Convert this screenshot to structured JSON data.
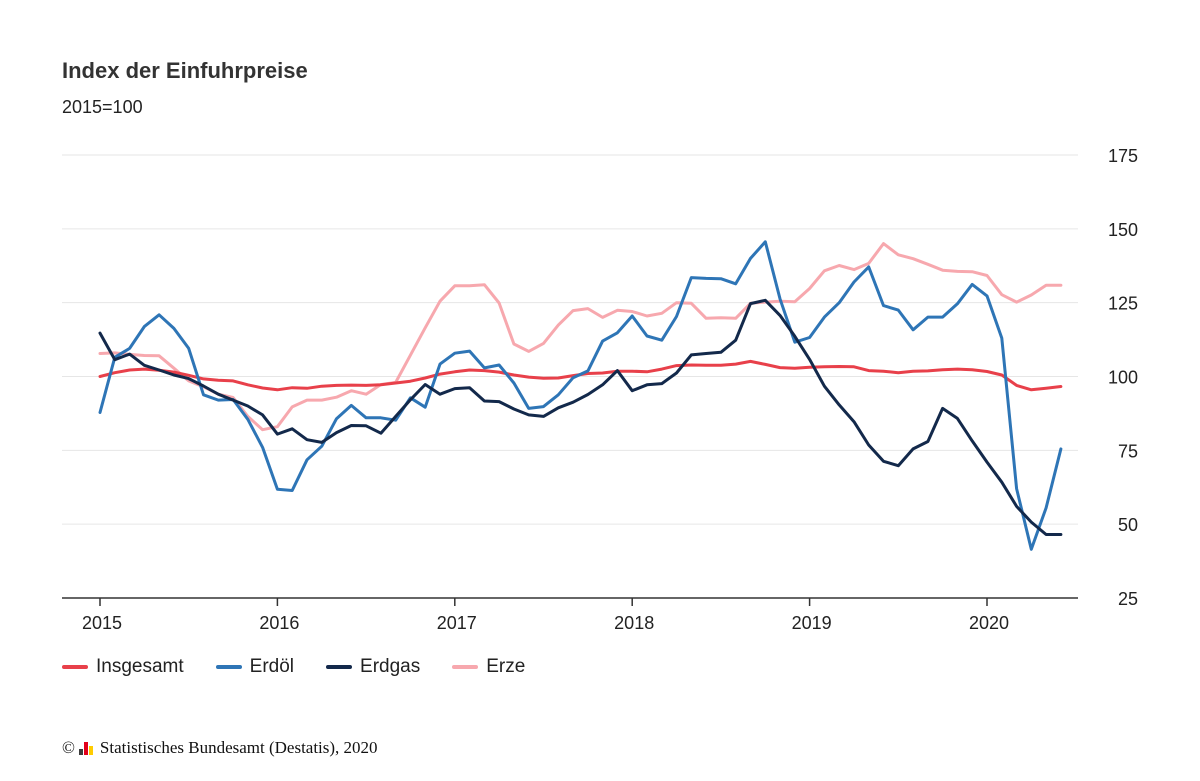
{
  "header": {
    "title": "Index der Einfuhrpreise",
    "subtitle": "2015=100"
  },
  "footer": {
    "copyright_symbol": "©",
    "source": "Statistisches Bundesamt (Destatis), 2020",
    "logo_icon": "destatis-bar-logo-icon",
    "logo_colors": [
      "#3c3c3c",
      "#e2001a",
      "#ffcc00"
    ]
  },
  "chart_data": {
    "type": "line",
    "title": "Index der Einfuhrpreise",
    "subtitle": "2015=100",
    "xlabel": "",
    "ylabel": "",
    "y_axis_position": "right",
    "ylim": [
      25,
      175
    ],
    "yticks": [
      25,
      50,
      75,
      100,
      125,
      150,
      175
    ],
    "xticks": [
      "2015",
      "2016",
      "2017",
      "2018",
      "2019",
      "2020"
    ],
    "grid": true,
    "legend_position": "bottom-left",
    "x": [
      "2015-01",
      "2015-02",
      "2015-03",
      "2015-04",
      "2015-05",
      "2015-06",
      "2015-07",
      "2015-08",
      "2015-09",
      "2015-10",
      "2015-11",
      "2015-12",
      "2016-01",
      "2016-02",
      "2016-03",
      "2016-04",
      "2016-05",
      "2016-06",
      "2016-07",
      "2016-08",
      "2016-09",
      "2016-10",
      "2016-11",
      "2016-12",
      "2017-01",
      "2017-02",
      "2017-03",
      "2017-04",
      "2017-05",
      "2017-06",
      "2017-07",
      "2017-08",
      "2017-09",
      "2017-10",
      "2017-11",
      "2017-12",
      "2018-01",
      "2018-02",
      "2018-03",
      "2018-04",
      "2018-05",
      "2018-06",
      "2018-07",
      "2018-08",
      "2018-09",
      "2018-10",
      "2018-11",
      "2018-12",
      "2019-01",
      "2019-02",
      "2019-03",
      "2019-04",
      "2019-05",
      "2019-06",
      "2019-07",
      "2019-08",
      "2019-09",
      "2019-10",
      "2019-11",
      "2019-12",
      "2020-01",
      "2020-02",
      "2020-03",
      "2020-04",
      "2020-05",
      "2020-06"
    ],
    "series": [
      {
        "name": "Insgesamt",
        "color": "#e8404a",
        "values": [
          100.0,
          101.3,
          102.2,
          102.5,
          102.1,
          101.5,
          100.4,
          99.2,
          98.7,
          98.5,
          97.2,
          96.1,
          95.5,
          96.2,
          96.0,
          96.7,
          97.0,
          97.1,
          97.0,
          97.2,
          97.8,
          98.4,
          99.5,
          100.8,
          101.6,
          102.2,
          102.0,
          101.5,
          100.5,
          99.8,
          99.4,
          99.5,
          100.3,
          101.0,
          101.2,
          101.8,
          101.8,
          101.6,
          102.5,
          103.7,
          103.9,
          103.8,
          103.8,
          104.2,
          105.1,
          104.1,
          103.0,
          102.8,
          103.1,
          103.3,
          103.4,
          103.3,
          102.0,
          101.8,
          101.3,
          101.8,
          101.9,
          102.3,
          102.5,
          102.3,
          101.7,
          100.5,
          97.0,
          95.5,
          96.0,
          96.6
        ]
      },
      {
        "name": "Erdöl",
        "color": "#2e75b6",
        "values": [
          87.8,
          106.5,
          109.5,
          116.9,
          120.9,
          116.3,
          109.5,
          93.8,
          92.0,
          92.2,
          85.5,
          76.0,
          61.8,
          61.4,
          71.8,
          76.4,
          85.7,
          90.2,
          86.0,
          86.0,
          85.2,
          92.8,
          89.6,
          104.2,
          107.9,
          108.6,
          102.9,
          103.9,
          97.8,
          89.2,
          89.8,
          93.8,
          99.6,
          101.9,
          112.0,
          114.8,
          120.5,
          113.7,
          112.3,
          120.3,
          133.5,
          133.2,
          133.1,
          131.4,
          140.0,
          145.6,
          126.3,
          111.6,
          113.2,
          120.1,
          125.0,
          132.0,
          137.1,
          124.0,
          122.5,
          115.8,
          120.1,
          120.1,
          124.6,
          131.2,
          127.3,
          113.0,
          62.0,
          41.5,
          55.5,
          75.5
        ]
      },
      {
        "name": "Erdgas",
        "color": "#13294b",
        "values": [
          114.7,
          105.7,
          107.6,
          103.8,
          102.2,
          100.5,
          99.3,
          96.8,
          94.0,
          92.0,
          90.0,
          87.0,
          80.5,
          82.3,
          78.6,
          77.7,
          81.0,
          83.4,
          83.3,
          80.8,
          86.5,
          92.1,
          97.3,
          94.0,
          95.9,
          96.2,
          91.7,
          91.5,
          89.0,
          87.0,
          86.5,
          89.4,
          91.3,
          93.9,
          97.2,
          102.0,
          95.2,
          97.2,
          97.6,
          101.2,
          107.3,
          107.8,
          108.2,
          112.3,
          124.7,
          125.8,
          120.7,
          113.6,
          105.8,
          96.7,
          90.4,
          84.7,
          76.8,
          71.3,
          69.8,
          75.5,
          78.0,
          89.2,
          85.8,
          78.2,
          71.0,
          64.2,
          56.0,
          50.7,
          46.5,
          46.5
        ]
      },
      {
        "name": "Erze",
        "color": "#f7a8ae",
        "values": [
          107.8,
          108.0,
          107.5,
          107.1,
          107.0,
          102.8,
          98.5,
          96.5,
          94.0,
          92.9,
          86.5,
          82.0,
          83.0,
          89.7,
          92.0,
          92.0,
          93.0,
          95.2,
          94.0,
          97.3,
          98.0,
          107.2,
          116.5,
          125.5,
          130.7,
          130.7,
          131.1,
          124.9,
          111.0,
          108.5,
          111.2,
          117.4,
          122.3,
          123.0,
          120.0,
          122.4,
          122.0,
          120.5,
          121.4,
          125.0,
          124.8,
          119.7,
          119.9,
          119.7,
          124.8,
          125.2,
          125.5,
          125.3,
          129.8,
          135.8,
          137.6,
          136.2,
          138.3,
          145.0,
          141.2,
          139.9,
          138.0,
          136.0,
          135.6,
          135.5,
          134.2,
          127.7,
          125.2,
          127.6,
          130.9,
          130.9
        ]
      }
    ]
  }
}
